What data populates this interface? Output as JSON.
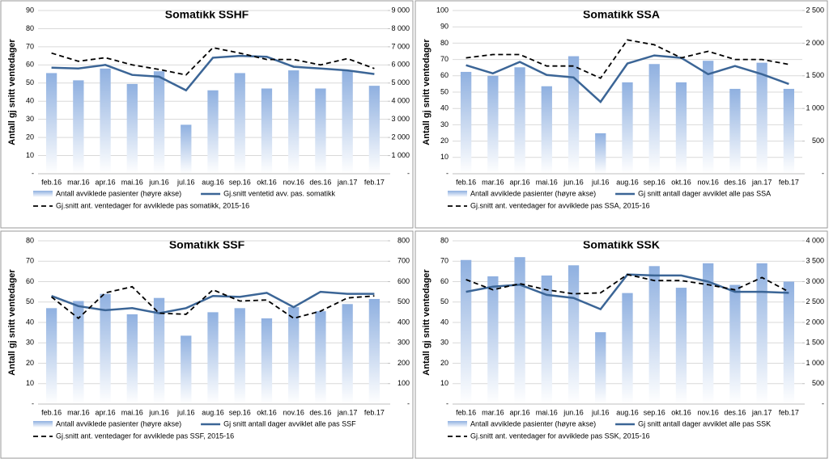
{
  "chart_data": [
    {
      "type": "combo",
      "title": "Somatikk SSHF",
      "y_label": "Antall gj snitt ventedager",
      "categories": [
        "feb.16",
        "mar.16",
        "apr.16",
        "mai.16",
        "jun.16",
        "jul.16",
        "aug.16",
        "sep.16",
        "okt.16",
        "nov.16",
        "des.16",
        "jan.17",
        "feb.17"
      ],
      "ylim": [
        0,
        90
      ],
      "yticks": [
        {
          "value": 0,
          "label": "-"
        },
        10,
        20,
        30,
        40,
        50,
        60,
        70,
        80,
        90
      ],
      "y2lim": [
        0,
        9000
      ],
      "y2ticks": [
        {
          "value": 0,
          "label": "-"
        },
        {
          "value": 1000,
          "label": "1 000"
        },
        {
          "value": 2000,
          "label": "2 000"
        },
        {
          "value": 3000,
          "label": "3 000"
        },
        {
          "value": 4000,
          "label": "4 000"
        },
        {
          "value": 5000,
          "label": "5 000"
        },
        {
          "value": 6000,
          "label": "6 000"
        },
        {
          "value": 7000,
          "label": "7 000"
        },
        {
          "value": 8000,
          "label": "8 000"
        },
        {
          "value": 9000,
          "label": "9 000"
        }
      ],
      "grid": true,
      "series": [
        {
          "name": "Antall avviklede pasienter (høyre akse)",
          "kind": "bar",
          "axis": "y2",
          "color": "#8fb0e0",
          "values": [
            5550,
            5150,
            5800,
            4950,
            5650,
            2700,
            4600,
            5550,
            4700,
            5700,
            4700,
            5700,
            4850
          ]
        },
        {
          "name": "Gj.snitt ventetid avv. pas. somatikk",
          "kind": "line",
          "color": "#3b6596",
          "values": [
            58.5,
            58,
            60,
            54.5,
            53.5,
            46,
            64,
            65,
            64.5,
            59,
            58,
            57,
            55
          ]
        },
        {
          "name": "Gj.snitt ant. ventedager for avviklede pas somatikk, 2015-16",
          "kind": "line",
          "dash": true,
          "color": "#000000",
          "values": [
            66.5,
            62,
            64,
            60,
            57.5,
            54.5,
            69.5,
            66.5,
            63,
            63,
            60,
            63.5,
            58
          ]
        }
      ]
    },
    {
      "type": "combo",
      "title": "Somatikk SSA",
      "y_label": "Antall gj snitt ventedager",
      "categories": [
        "feb.16",
        "mar.16",
        "apr.16",
        "mai.16",
        "jun.16",
        "jul.16",
        "aug.16",
        "sep.16",
        "okt.16",
        "nov.16",
        "des.16",
        "jan.17",
        "feb.17"
      ],
      "ylim": [
        0,
        100
      ],
      "yticks": [
        {
          "value": 0,
          "label": "-"
        },
        10,
        20,
        30,
        40,
        50,
        60,
        70,
        80,
        90,
        100
      ],
      "y2lim": [
        0,
        2500
      ],
      "y2ticks": [
        {
          "value": 0,
          "label": "-"
        },
        500,
        {
          "value": 1000,
          "label": "1 000"
        },
        {
          "value": 1500,
          "label": "1 500"
        },
        {
          "value": 2000,
          "label": "2 000"
        },
        {
          "value": 2500,
          "label": "2 500"
        }
      ],
      "grid": true,
      "series": [
        {
          "name": "Antall avviklede pasienter (høyre akse)",
          "kind": "bar",
          "axis": "y2",
          "color": "#8fb0e0",
          "values": [
            1560,
            1500,
            1630,
            1340,
            1800,
            620,
            1400,
            1680,
            1400,
            1730,
            1300,
            1700,
            1300
          ]
        },
        {
          "name": "Gj snitt antall dager avviklet alle pas SSA",
          "kind": "line",
          "color": "#3b6596",
          "values": [
            66.5,
            61.5,
            68.5,
            60.5,
            59,
            44,
            67.5,
            72.5,
            71,
            61,
            66,
            61,
            55
          ]
        },
        {
          "name": "Gj.snitt ant. ventedager for avviklede pas SSA, 2015-16",
          "kind": "line",
          "dash": true,
          "color": "#000000",
          "values": [
            71,
            73,
            73,
            66,
            66,
            58.5,
            82,
            79,
            71,
            75,
            70,
            70,
            67
          ]
        }
      ]
    },
    {
      "type": "combo",
      "title": "Somatikk SSF",
      "y_label": "Antall gj snitt ventedager",
      "categories": [
        "feb.16",
        "mar.16",
        "apr.16",
        "mai.16",
        "jun.16",
        "jul.16",
        "aug.16",
        "sep.16",
        "okt.16",
        "nov.16",
        "des.16",
        "jan.17",
        "feb.17"
      ],
      "ylim": [
        0,
        80
      ],
      "yticks": [
        {
          "value": 0,
          "label": "-"
        },
        10,
        20,
        30,
        40,
        50,
        60,
        70,
        80
      ],
      "y2lim": [
        0,
        800
      ],
      "y2ticks": [
        {
          "value": 0,
          "label": "-"
        },
        100,
        200,
        300,
        400,
        500,
        600,
        700,
        800
      ],
      "grid": true,
      "series": [
        {
          "name": "Antall avviklede pasienter (høyre akse)",
          "kind": "bar",
          "axis": "y2",
          "color": "#8fb0e0",
          "values": [
            470,
            505,
            540,
            440,
            520,
            335,
            450,
            470,
            420,
            475,
            455,
            490,
            515
          ]
        },
        {
          "name": "Gj snitt antall dager avviklet alle pas SSF",
          "kind": "line",
          "color": "#3b6596",
          "values": [
            53,
            48,
            46,
            47,
            44.5,
            47,
            53,
            52.5,
            54.5,
            47.5,
            55,
            54,
            54
          ]
        },
        {
          "name": "Gj.snitt ant. ventedager for avviklede pas SSF, 2015-16",
          "kind": "line",
          "dash": true,
          "color": "#000000",
          "values": [
            52.5,
            42,
            54.5,
            57.5,
            44.5,
            44,
            56,
            50.5,
            51,
            42,
            45.5,
            52,
            53
          ]
        }
      ]
    },
    {
      "type": "combo",
      "title": "Somatikk SSK",
      "y_label": "Antall gj snitt ventedager",
      "categories": [
        "feb.16",
        "mar.16",
        "apr.16",
        "mai.16",
        "jun.16",
        "jul.16",
        "aug.16",
        "sep.16",
        "okt.16",
        "nov.16",
        "des.16",
        "jan.17",
        "feb.17"
      ],
      "ylim": [
        0,
        80
      ],
      "yticks": [
        {
          "value": 0,
          "label": "-"
        },
        10,
        20,
        30,
        40,
        50,
        60,
        70,
        80
      ],
      "y2lim": [
        0,
        4000
      ],
      "y2ticks": [
        {
          "value": 0,
          "label": "-"
        },
        500,
        {
          "value": 1000,
          "label": "1 000"
        },
        {
          "value": 1500,
          "label": "1 500"
        },
        {
          "value": 2000,
          "label": "2 000"
        },
        {
          "value": 2500,
          "label": "2 500"
        },
        {
          "value": 3000,
          "label": "3 000"
        },
        {
          "value": 3500,
          "label": "3 500"
        },
        {
          "value": 4000,
          "label": "4 000"
        }
      ],
      "grid": true,
      "series": [
        {
          "name": "Antall avviklede pasienter (høyre akse)",
          "kind": "bar",
          "axis": "y2",
          "color": "#8fb0e0",
          "values": [
            3530,
            3130,
            3600,
            3150,
            3400,
            1760,
            2720,
            3380,
            2850,
            3450,
            2920,
            3450,
            3000
          ]
        },
        {
          "name": "Gj snitt antall dager avviklet alle pas SSK",
          "kind": "line",
          "color": "#3b6596",
          "values": [
            55,
            57.5,
            58.5,
            53.5,
            52,
            46.5,
            63.5,
            63,
            63,
            60,
            55,
            55,
            54.5
          ]
        },
        {
          "name": "Gj.snitt ant. ventedager for avviklede pas SSK, 2015-16",
          "kind": "line",
          "dash": true,
          "color": "#000000",
          "values": [
            61,
            56,
            59,
            56,
            54,
            54.5,
            63.5,
            60.5,
            60.5,
            58.5,
            56,
            62,
            55
          ]
        }
      ]
    }
  ]
}
